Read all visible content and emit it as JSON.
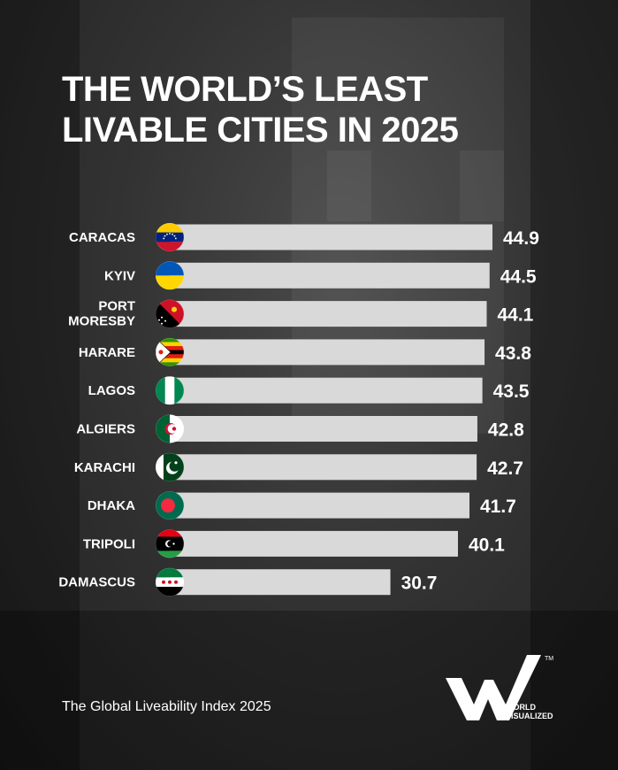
{
  "title_lines": [
    "THE WORLD’S LEAST",
    "LIVABLE CITIES IN 2025"
  ],
  "source": "The Global Liveability Index 2025",
  "brand": {
    "line1": "WORLD",
    "line2": "VISUALIZED",
    "tm": "TM"
  },
  "chart_data": {
    "type": "bar",
    "orientation": "horizontal",
    "categories": [
      "CARACAS",
      "KYIV",
      "PORT MORESBY",
      "HARARE",
      "LAGOS",
      "ALGIERS",
      "KARACHI",
      "DHAKA",
      "TRIPOLI",
      "DAMASCUS"
    ],
    "category_lines": [
      [
        "CARACAS"
      ],
      [
        "KYIV"
      ],
      [
        "PORT",
        "MORESBY"
      ],
      [
        "HARARE"
      ],
      [
        "LAGOS"
      ],
      [
        "ALGIERS"
      ],
      [
        "KARACHI"
      ],
      [
        "DHAKA"
      ],
      [
        "TRIPOLI"
      ],
      [
        "DAMASCUS"
      ]
    ],
    "values": [
      44.9,
      44.5,
      44.1,
      43.8,
      43.5,
      42.8,
      42.7,
      41.7,
      40.1,
      30.7
    ],
    "value_labels": [
      "44.9",
      "44.5",
      "44.1",
      "43.8",
      "43.5",
      "42.8",
      "42.7",
      "41.7",
      "40.1",
      "30.7"
    ],
    "flags": [
      "venezuela-flag-icon",
      "ukraine-flag-icon",
      "papua-new-guinea-flag-icon",
      "zimbabwe-flag-icon",
      "nigeria-flag-icon",
      "algeria-flag-icon",
      "pakistan-flag-icon",
      "bangladesh-flag-icon",
      "libya-flag-icon",
      "syria-flag-icon"
    ],
    "bar_color": "#d9d9d9",
    "grid": false,
    "legend": "none"
  }
}
